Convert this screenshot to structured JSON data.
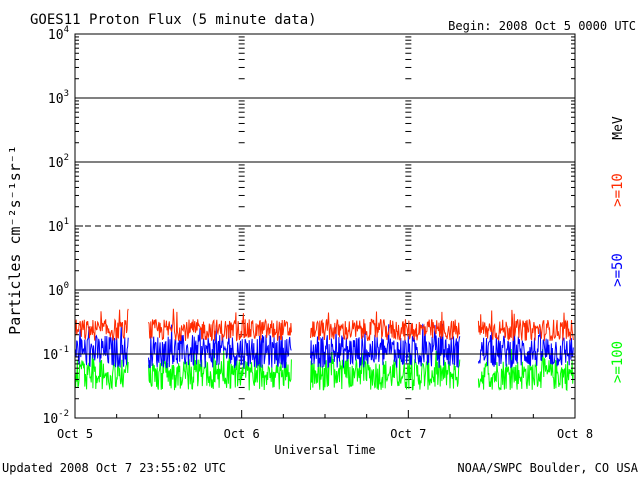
{
  "chart_data": {
    "type": "line",
    "title": "GOES11 Proton Flux (5 minute data)",
    "begin_label": "Begin: 2008 Oct 5 0000 UTC",
    "xlabel": "Universal Time",
    "ylabel": "Particles cm⁻²s⁻¹sr⁻¹",
    "y_scale": "log",
    "ylim": [
      0.01,
      10000
    ],
    "y_ticks": [
      {
        "value": 0.01,
        "base": "10",
        "exp": "-2"
      },
      {
        "value": 0.1,
        "base": "10",
        "exp": "-1"
      },
      {
        "value": 1,
        "base": "10",
        "exp": "0"
      },
      {
        "value": 10,
        "base": "10",
        "exp": "1"
      },
      {
        "value": 100,
        "base": "10",
        "exp": "2"
      },
      {
        "value": 1000,
        "base": "10",
        "exp": "3"
      },
      {
        "value": 10000,
        "base": "10",
        "exp": "4"
      }
    ],
    "x_ticks": [
      "Oct 5",
      "Oct 6",
      "Oct 7",
      "Oct 8"
    ],
    "xlim": [
      "2008-10-05",
      "2008-10-08"
    ],
    "threshold_lines": [
      {
        "value": 1,
        "style": "solid"
      },
      {
        "value": 10,
        "style": "dashed"
      },
      {
        "value": 100,
        "style": "solid"
      },
      {
        "value": 1000,
        "style": "solid"
      }
    ],
    "reference_line": 0.1,
    "data_gaps_days": [
      [
        0.32,
        0.44
      ],
      [
        1.3,
        1.41
      ],
      [
        2.31,
        2.42
      ]
    ],
    "series": [
      {
        "name": ">=10",
        "color": "#ff2a00",
        "typical_min": 0.16,
        "typical_max": 0.35,
        "peak": 0.52
      },
      {
        "name": ">=50",
        "color": "#0000ff",
        "typical_min": 0.06,
        "typical_max": 0.2,
        "peak": 0.3
      },
      {
        "name": ">=100",
        "color": "#00ff00",
        "typical_min": 0.027,
        "typical_max": 0.085,
        "peak": 0.12
      }
    ],
    "unit_label": "MeV"
  },
  "footer": {
    "updated": "Updated 2008 Oct  7 23:55:02 UTC",
    "source": "NOAA/SWPC Boulder, CO USA"
  }
}
